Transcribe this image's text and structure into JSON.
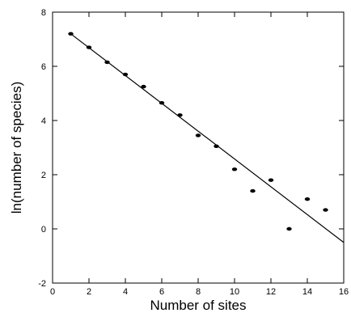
{
  "chart_data": {
    "type": "scatter",
    "title": "",
    "xlabel": "Number of sites",
    "ylabel": "ln(number of species)",
    "xlim": [
      0,
      16
    ],
    "ylim": [
      -2,
      8
    ],
    "xticks": [
      "0",
      "2",
      "4",
      "6",
      "8",
      "10",
      "12",
      "14",
      "16"
    ],
    "yticks": [
      "-2",
      "0",
      "2",
      "4",
      "6",
      "8"
    ],
    "grid": false,
    "legend": "none",
    "colors": {
      "marks": "#000000",
      "axes": "#000000",
      "background": "#ffffff"
    },
    "series": [
      {
        "kind": "points",
        "x": [
          1,
          2,
          3,
          4,
          5,
          6,
          7,
          8,
          9,
          10,
          11,
          12,
          13,
          14,
          15
        ],
        "y": [
          7.2,
          6.7,
          6.15,
          5.7,
          5.25,
          4.65,
          4.2,
          3.45,
          3.05,
          2.2,
          1.4,
          1.8,
          0.0,
          1.1,
          0.7
        ]
      },
      {
        "kind": "fit-line",
        "x": [
          1,
          16
        ],
        "y": [
          7.2,
          -0.5
        ]
      }
    ]
  }
}
